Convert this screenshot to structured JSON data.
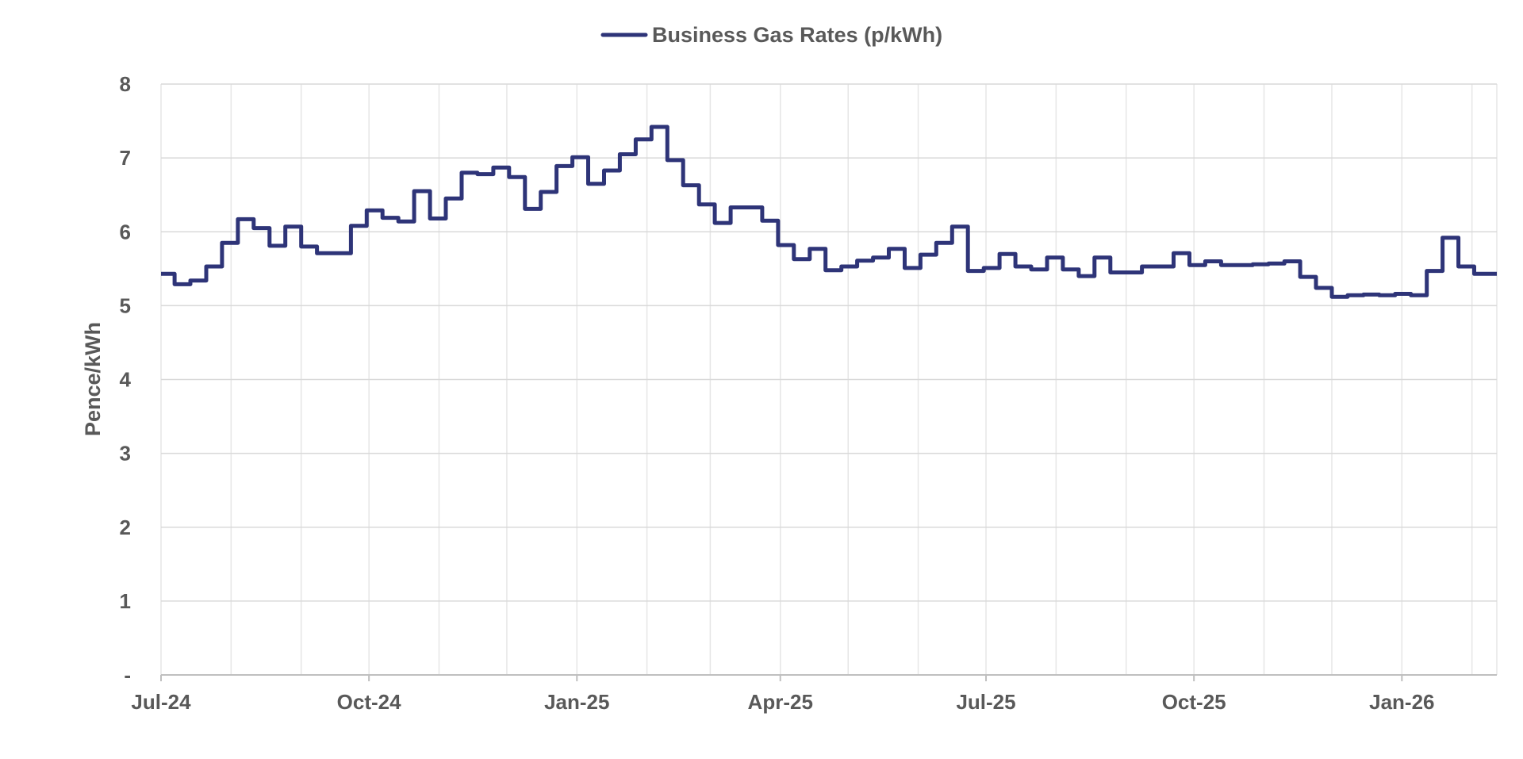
{
  "colors": {
    "series": "#2E3478",
    "grid": "#D9D9D9",
    "text": "#595959",
    "axis": "#BFBFBF"
  },
  "chart_data": {
    "type": "line",
    "title": "",
    "xlabel": "",
    "ylabel": "Pence/kWh",
    "legend_position": "top-center",
    "grid": true,
    "xlim": [
      "2024-07-01",
      "2026-02-12"
    ],
    "ylim": [
      0,
      8
    ],
    "y_ticks": [
      "-",
      "1",
      "2",
      "3",
      "4",
      "5",
      "6",
      "7",
      "8"
    ],
    "x_tick_labels": [
      "Jul-24",
      "Oct-24",
      "Jan-25",
      "Apr-25",
      "Jul-25",
      "Oct-25",
      "Jan-26"
    ],
    "x_tick_dates": [
      "2024-07-01",
      "2024-10-01",
      "2025-01-01",
      "2025-04-01",
      "2025-07-01",
      "2025-10-01",
      "2026-01-01"
    ],
    "series": [
      {
        "name": "Business Gas Rates (p/kWh)",
        "step": true,
        "points": [
          [
            "2024-07-01",
            5.43
          ],
          [
            "2024-07-07",
            5.29
          ],
          [
            "2024-07-14",
            5.34
          ],
          [
            "2024-07-21",
            5.53
          ],
          [
            "2024-07-28",
            5.85
          ],
          [
            "2024-08-04",
            6.17
          ],
          [
            "2024-08-11",
            6.05
          ],
          [
            "2024-08-18",
            5.81
          ],
          [
            "2024-08-25",
            6.07
          ],
          [
            "2024-09-01",
            5.8
          ],
          [
            "2024-09-08",
            5.71
          ],
          [
            "2024-09-23",
            6.08
          ],
          [
            "2024-09-30",
            6.29
          ],
          [
            "2024-10-07",
            6.19
          ],
          [
            "2024-10-14",
            6.14
          ],
          [
            "2024-10-21",
            6.55
          ],
          [
            "2024-10-28",
            6.18
          ],
          [
            "2024-11-04",
            6.45
          ],
          [
            "2024-11-11",
            6.8
          ],
          [
            "2024-11-18",
            6.78
          ],
          [
            "2024-11-25",
            6.87
          ],
          [
            "2024-12-02",
            6.74
          ],
          [
            "2024-12-09",
            6.31
          ],
          [
            "2024-12-16",
            6.54
          ],
          [
            "2024-12-23",
            6.89
          ],
          [
            "2024-12-30",
            7.01
          ],
          [
            "2025-01-06",
            6.65
          ],
          [
            "2025-01-13",
            6.83
          ],
          [
            "2025-01-20",
            7.05
          ],
          [
            "2025-01-27",
            7.25
          ],
          [
            "2025-02-03",
            7.42
          ],
          [
            "2025-02-10",
            6.97
          ],
          [
            "2025-02-17",
            6.63
          ],
          [
            "2025-02-24",
            6.37
          ],
          [
            "2025-03-03",
            6.12
          ],
          [
            "2025-03-10",
            6.33
          ],
          [
            "2025-03-24",
            6.15
          ],
          [
            "2025-03-31",
            5.82
          ],
          [
            "2025-04-07",
            5.63
          ],
          [
            "2025-04-14",
            5.77
          ],
          [
            "2025-04-21",
            5.48
          ],
          [
            "2025-04-28",
            5.53
          ],
          [
            "2025-05-05",
            5.61
          ],
          [
            "2025-05-12",
            5.65
          ],
          [
            "2025-05-19",
            5.77
          ],
          [
            "2025-05-26",
            5.51
          ],
          [
            "2025-06-02",
            5.69
          ],
          [
            "2025-06-09",
            5.85
          ],
          [
            "2025-06-16",
            6.07
          ],
          [
            "2025-06-23",
            5.47
          ],
          [
            "2025-06-30",
            5.51
          ],
          [
            "2025-07-07",
            5.7
          ],
          [
            "2025-07-14",
            5.53
          ],
          [
            "2025-07-21",
            5.49
          ],
          [
            "2025-07-28",
            5.65
          ],
          [
            "2025-08-04",
            5.49
          ],
          [
            "2025-08-11",
            5.4
          ],
          [
            "2025-08-18",
            5.65
          ],
          [
            "2025-08-25",
            5.45
          ],
          [
            "2025-09-08",
            5.53
          ],
          [
            "2025-09-22",
            5.71
          ],
          [
            "2025-09-29",
            5.55
          ],
          [
            "2025-10-06",
            5.6
          ],
          [
            "2025-10-13",
            5.55
          ],
          [
            "2025-10-27",
            5.56
          ],
          [
            "2025-11-03",
            5.57
          ],
          [
            "2025-11-10",
            5.6
          ],
          [
            "2025-11-17",
            5.39
          ],
          [
            "2025-11-24",
            5.24
          ],
          [
            "2025-12-01",
            5.12
          ],
          [
            "2025-12-08",
            5.14
          ],
          [
            "2025-12-15",
            5.15
          ],
          [
            "2025-12-22",
            5.14
          ],
          [
            "2025-12-29",
            5.16
          ],
          [
            "2026-01-05",
            5.14
          ],
          [
            "2026-01-12",
            5.47
          ],
          [
            "2026-01-19",
            5.92
          ],
          [
            "2026-01-26",
            5.53
          ],
          [
            "2026-02-02",
            5.43
          ],
          [
            "2026-02-12",
            5.43
          ]
        ]
      }
    ]
  }
}
